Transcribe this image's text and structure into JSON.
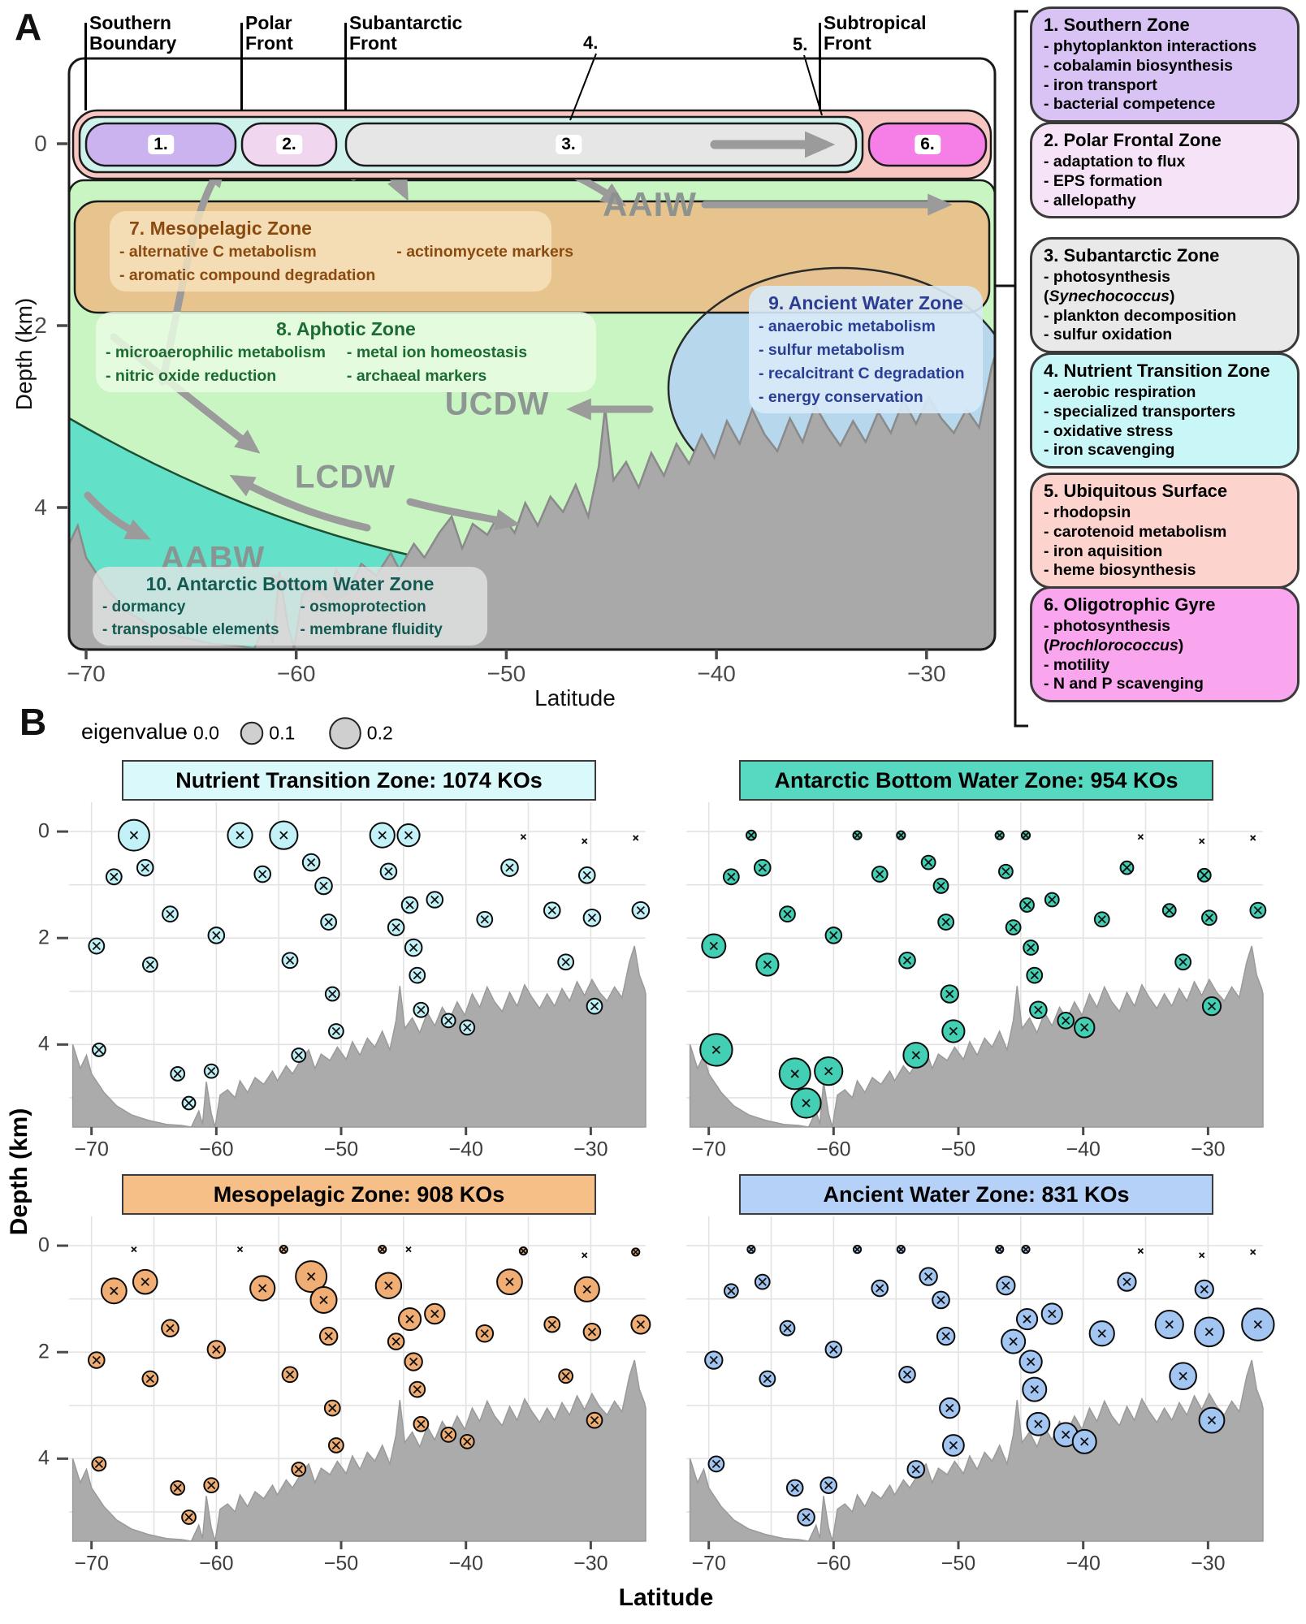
{
  "colors": {
    "surface_outer": "#f8c6c1",
    "surface_inner": "#cff2ec",
    "pill1": "#cbb3ef",
    "pill2": "#f1d6ef",
    "pill3": "#e6e6e6",
    "pill6": "#f57fe6",
    "green": "#c9f5c2",
    "orange": "#e9bf8a",
    "blue": "#b7d8ec",
    "teal": "#63e0c8",
    "seafloor": "#a9a9a9",
    "arrow": "#9b9b9b",
    "meso_text": "#8a4a10",
    "green_text": "#1c6b33",
    "blue_text": "#2c3e94",
    "teal_text": "#125a52",
    "ntz_fill": "#c2f1f7",
    "ntz_title": "#d9f9fa",
    "abw_fill": "#43cfb4",
    "abw_title": "#57d8c1",
    "meso_fill": "#f0ad74",
    "meso_title": "#f6bf88",
    "awz_fill": "#a3c5f1",
    "awz_title": "#b6d1f7",
    "sidebar": [
      "#d9c2f4",
      "#f7e3f7",
      "#e9e9e9",
      "#c9f6f6",
      "#fdd3ce",
      "#f9a6ee"
    ]
  },
  "panelA": {
    "label": "A",
    "ylabel": "Depth (km)",
    "xlabel": "Latitude",
    "yticks": [
      0,
      2,
      4
    ],
    "xticks": [
      -70,
      -60,
      -50,
      -40,
      -30
    ],
    "fronts": [
      "Southern Boundary",
      "Polar Front",
      "Subantarctic Front",
      "Subtropical Front"
    ],
    "pills": [
      "1.",
      "2.",
      "3.",
      "6."
    ],
    "pointer4": "4.",
    "pointer5": "5.",
    "watermasses": [
      "AAIW",
      "UCDW",
      "LCDW",
      "AABW"
    ],
    "zones": [
      {
        "title": "7. Mesopelagic Zone",
        "cols": [
          [
            "- alternative C metabolism",
            "- aromatic compound degradation"
          ],
          [
            "- actinomycete markers"
          ]
        ]
      },
      {
        "title": "8. Aphotic Zone",
        "cols": [
          [
            "- microaerophilic metabolism",
            "- nitric oxide reduction"
          ],
          [
            "- metal ion homeostasis",
            "- archaeal markers"
          ]
        ]
      },
      {
        "title": "9. Ancient Water Zone",
        "cols": [
          [
            "- anaerobic metabolism",
            "- sulfur metabolism",
            "- recalcitrant C degradation",
            "- energy conservation"
          ]
        ]
      },
      {
        "title": "10. Antarctic Bottom Water Zone",
        "cols": [
          [
            "- dormancy",
            "- transposable elements"
          ],
          [
            "- osmoprotection",
            "- membrane fluidity"
          ]
        ]
      }
    ]
  },
  "sidebar": {
    "boxes": [
      {
        "title": "1. Southern Zone",
        "color": "#d9c2f4",
        "bullets": [
          "- phytoplankton interactions",
          "- cobalamin biosynthesis",
          "- iron transport",
          "- bacterial competence"
        ]
      },
      {
        "title": "2. Polar Frontal Zone",
        "color": "#f7e3f7",
        "bullets": [
          "- adaptation to flux",
          "- EPS formation",
          "- allelopathy"
        ]
      },
      {
        "title": "3. Subantarctic Zone",
        "color": "#e9e9e9",
        "bullets": [
          "- photosynthesis",
          "(Synechococcus)",
          "- plankton decomposition",
          "- sulfur oxidation"
        ]
      },
      {
        "title": "4. Nutrient Transition Zone",
        "color": "#c9f6f6",
        "bullets": [
          "- aerobic respiration",
          "- specialized transporters",
          "- oxidative stress",
          "- iron scavenging"
        ]
      },
      {
        "title": "5. Ubiquitous Surface",
        "color": "#fdd3ce",
        "bullets": [
          "- rhodopsin",
          "- carotenoid metabolism",
          "- iron aquisition",
          "- heme biosynthesis"
        ]
      },
      {
        "title": "6. Oligotrophic Gyre",
        "color": "#f9a6ee",
        "bullets": [
          "- photosynthesis",
          "(Prochlorococcus)",
          "- motility",
          "- N and P scavenging"
        ]
      }
    ]
  },
  "panelB": {
    "label": "B",
    "legend_title": "eigenvalue",
    "xlabel": "Latitude",
    "ylabel": "Depth (km)"
  },
  "chart_data": {
    "type": "bubble",
    "xlabel": "Latitude",
    "ylabel": "Depth (km)",
    "xticks": [
      -70,
      -60,
      -50,
      -40,
      -30
    ],
    "yticks": [
      0,
      2,
      4
    ],
    "xlim": [
      -71.8,
      -25.6
    ],
    "ylim_depth_km": [
      -0.55,
      5.55
    ],
    "legend": {
      "title": "eigenvalue",
      "sizes": [
        0.0,
        0.1,
        0.2
      ]
    },
    "x_shared": [
      -69.6,
      -69.4,
      -68.2,
      -66.6,
      -65.7,
      -65.3,
      -63.7,
      -63.1,
      -62.2,
      -60.4,
      -60.0,
      -58.1,
      -56.3,
      -54.6,
      -54.1,
      -53.4,
      -52.4,
      -51.4,
      -51.0,
      -50.7,
      -50.4,
      -46.7,
      -46.2,
      -45.6,
      -44.6,
      -44.5,
      -44.2,
      -43.9,
      -43.6,
      -42.5,
      -41.4,
      -39.9,
      -38.5,
      -36.5,
      -35.4,
      -33.1,
      -32.0,
      -30.5,
      -30.3,
      -29.9,
      -29.7,
      -26.4,
      -26.0
    ],
    "y_shared": [
      2.15,
      4.1,
      0.85,
      0.07,
      0.68,
      2.5,
      1.55,
      4.55,
      5.1,
      4.5,
      1.95,
      0.07,
      0.8,
      0.07,
      2.42,
      4.2,
      0.58,
      1.02,
      1.7,
      3.05,
      3.75,
      0.07,
      0.75,
      1.8,
      0.07,
      1.38,
      2.18,
      2.7,
      3.35,
      1.28,
      3.55,
      3.68,
      1.65,
      0.68,
      0.1,
      1.48,
      2.45,
      0.18,
      0.82,
      1.62,
      3.28,
      0.12,
      1.48
    ],
    "series": [
      {
        "name": "Nutrient Transition Zone: 1074 KOs",
        "eigenvalues": [
          0.05,
          0.035,
          0.05,
          0.205,
          0.055,
          0.045,
          0.05,
          0.04,
          0.035,
          0.04,
          0.055,
          0.13,
          0.055,
          0.165,
          0.05,
          0.04,
          0.06,
          0.06,
          0.05,
          0.04,
          0.045,
          0.13,
          0.055,
          0.055,
          0.105,
          0.055,
          0.06,
          0.05,
          0.045,
          0.055,
          0.04,
          0.045,
          0.05,
          0.06,
          0.004,
          0.055,
          0.05,
          0.004,
          0.055,
          0.06,
          0.05,
          0.004,
          0.06
        ]
      },
      {
        "name": "Antarctic Bottom Water Zone: 954 KOs",
        "eigenvalues": [
          0.12,
          0.22,
          0.05,
          0.02,
          0.055,
          0.105,
          0.05,
          0.205,
          0.185,
          0.165,
          0.055,
          0.015,
          0.05,
          0.015,
          0.055,
          0.135,
          0.04,
          0.045,
          0.05,
          0.065,
          0.105,
          0.015,
          0.04,
          0.045,
          0.015,
          0.04,
          0.045,
          0.05,
          0.06,
          0.04,
          0.055,
          0.085,
          0.045,
          0.035,
          0.002,
          0.035,
          0.05,
          0.002,
          0.035,
          0.045,
          0.07,
          0.002,
          0.05
        ]
      },
      {
        "name": "Mesopelagic Zone: 908 KOs",
        "eigenvalues": [
          0.055,
          0.04,
          0.135,
          0.004,
          0.125,
          0.05,
          0.06,
          0.04,
          0.04,
          0.045,
          0.065,
          0.003,
          0.13,
          0.012,
          0.05,
          0.04,
          0.205,
          0.145,
          0.065,
          0.05,
          0.045,
          0.012,
          0.14,
          0.055,
          0.003,
          0.105,
          0.065,
          0.05,
          0.045,
          0.085,
          0.045,
          0.04,
          0.06,
          0.135,
          0.012,
          0.05,
          0.04,
          0.003,
          0.13,
          0.06,
          0.05,
          0.012,
          0.075
        ]
      },
      {
        "name": "Ancient Water Zone: 831 KOs",
        "eigenvalues": [
          0.065,
          0.05,
          0.04,
          0.012,
          0.045,
          0.05,
          0.045,
          0.055,
          0.06,
          0.055,
          0.055,
          0.012,
          0.055,
          0.012,
          0.055,
          0.06,
          0.065,
          0.06,
          0.065,
          0.085,
          0.095,
          0.012,
          0.07,
          0.12,
          0.012,
          0.09,
          0.105,
          0.12,
          0.11,
          0.09,
          0.12,
          0.12,
          0.13,
          0.07,
          0.003,
          0.165,
          0.15,
          0.003,
          0.07,
          0.18,
          0.135,
          0.003,
          0.22
        ]
      }
    ],
    "seafloor": [
      [
        -71.5,
        4.0
      ],
      [
        -70.9,
        4.45
      ],
      [
        -70.4,
        4.2
      ],
      [
        -70.0,
        4.55
      ],
      [
        -69.0,
        4.9
      ],
      [
        -68.0,
        5.15
      ],
      [
        -66.8,
        5.32
      ],
      [
        -65.5,
        5.42
      ],
      [
        -64.0,
        5.5
      ],
      [
        -62.8,
        5.52
      ],
      [
        -62.0,
        5.55
      ],
      [
        -61.4,
        5.25
      ],
      [
        -61.1,
        5.5
      ],
      [
        -60.8,
        4.7
      ],
      [
        -60.4,
        5.3
      ],
      [
        -60.1,
        5.55
      ],
      [
        -59.7,
        4.95
      ],
      [
        -59.1,
        4.85
      ],
      [
        -58.5,
        5.0
      ],
      [
        -58.1,
        4.68
      ],
      [
        -57.5,
        4.9
      ],
      [
        -56.9,
        4.62
      ],
      [
        -56.2,
        4.75
      ],
      [
        -55.5,
        4.5
      ],
      [
        -55.1,
        4.68
      ],
      [
        -54.4,
        4.4
      ],
      [
        -53.9,
        4.55
      ],
      [
        -53.2,
        4.28
      ],
      [
        -52.6,
        4.1
      ],
      [
        -52.1,
        4.45
      ],
      [
        -51.6,
        4.18
      ],
      [
        -50.9,
        4.3
      ],
      [
        -50.3,
        4.05
      ],
      [
        -49.6,
        4.28
      ],
      [
        -49.1,
        3.95
      ],
      [
        -48.5,
        4.2
      ],
      [
        -47.9,
        3.88
      ],
      [
        -47.3,
        4.05
      ],
      [
        -46.7,
        3.75
      ],
      [
        -46.1,
        4.1
      ],
      [
        -45.6,
        3.55
      ],
      [
        -45.3,
        2.9
      ],
      [
        -44.9,
        3.7
      ],
      [
        -44.3,
        3.5
      ],
      [
        -43.7,
        3.78
      ],
      [
        -43.1,
        3.4
      ],
      [
        -42.5,
        3.65
      ],
      [
        -41.9,
        3.3
      ],
      [
        -41.3,
        3.52
      ],
      [
        -40.7,
        3.2
      ],
      [
        -40.1,
        3.45
      ],
      [
        -39.5,
        3.05
      ],
      [
        -38.9,
        3.3
      ],
      [
        -38.3,
        2.92
      ],
      [
        -37.7,
        3.2
      ],
      [
        -37.1,
        3.38
      ],
      [
        -36.5,
        3.02
      ],
      [
        -35.9,
        3.28
      ],
      [
        -35.3,
        2.88
      ],
      [
        -34.7,
        3.12
      ],
      [
        -34.1,
        3.32
      ],
      [
        -33.5,
        3.05
      ],
      [
        -32.9,
        3.28
      ],
      [
        -32.3,
        2.95
      ],
      [
        -31.7,
        3.18
      ],
      [
        -31.1,
        2.82
      ],
      [
        -30.5,
        3.08
      ],
      [
        -29.9,
        2.78
      ],
      [
        -29.3,
        3.02
      ],
      [
        -28.7,
        3.18
      ],
      [
        -28.1,
        2.92
      ],
      [
        -27.5,
        3.12
      ],
      [
        -26.9,
        2.45
      ],
      [
        -26.5,
        2.15
      ],
      [
        -26.1,
        2.7
      ],
      [
        -25.7,
        2.95
      ],
      [
        -25.4,
        3.05
      ]
    ]
  }
}
